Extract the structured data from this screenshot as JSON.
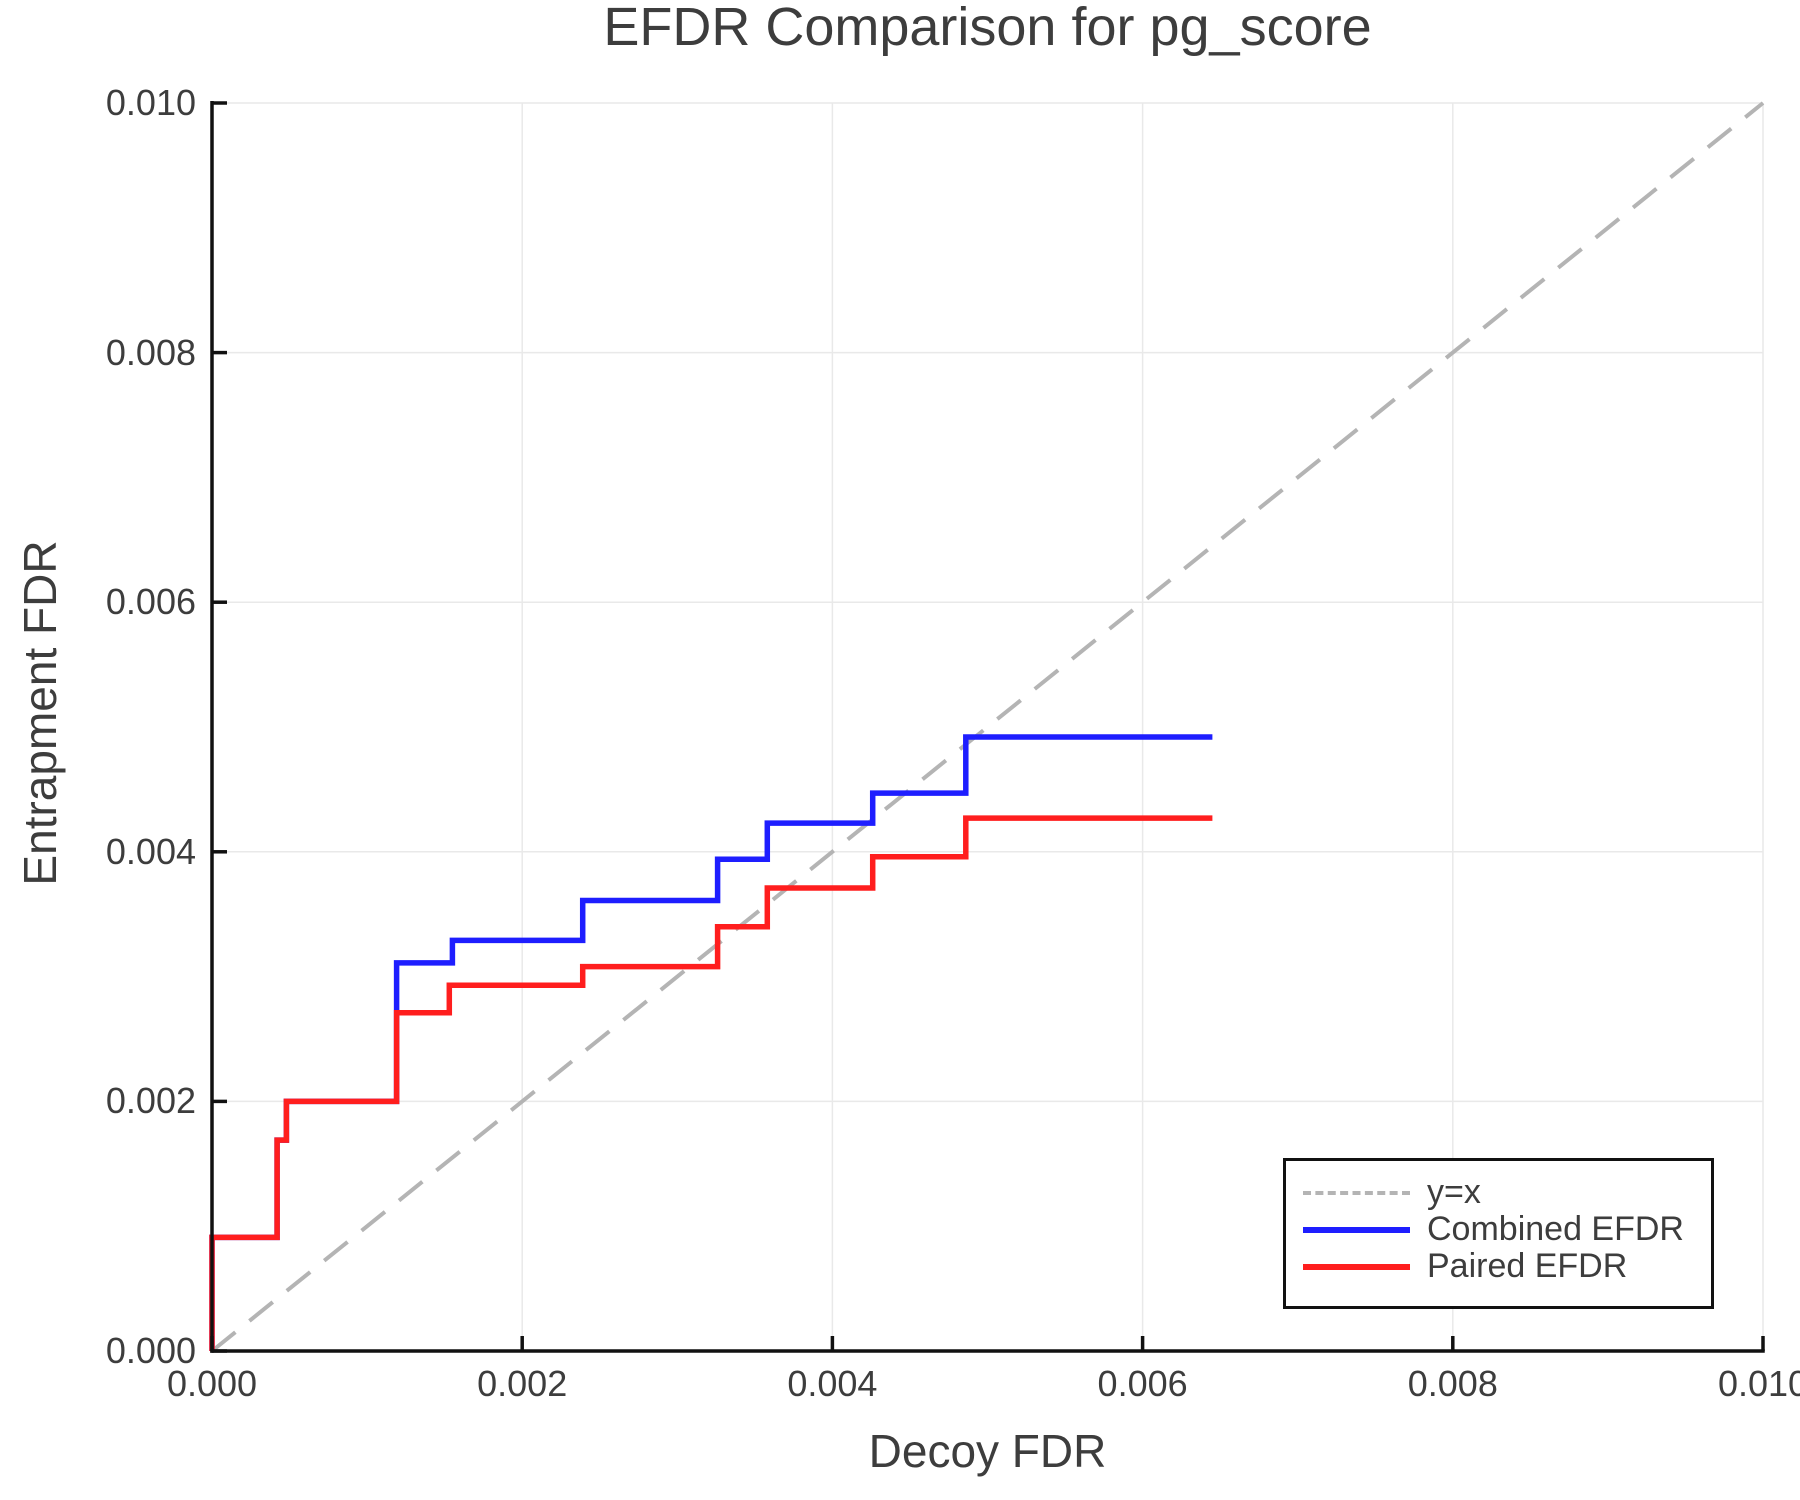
{
  "window": {
    "background": "#ffffff"
  },
  "colors": {
    "text": "#3d3d3d",
    "axis": "#111111",
    "grid": "#e9e9e9"
  },
  "chart_data": {
    "type": "line",
    "title": "EFDR Comparison for pg_score",
    "xlabel": "Decoy FDR",
    "ylabel": "Entrapment FDR",
    "xlim": [
      0,
      0.01
    ],
    "ylim": [
      0,
      0.01
    ],
    "grid": true,
    "legend_position": "bottom-right",
    "xticks": [
      {
        "value": 0.0,
        "label": "0.000"
      },
      {
        "value": 0.002,
        "label": "0.002"
      },
      {
        "value": 0.004,
        "label": "0.004"
      },
      {
        "value": 0.006,
        "label": "0.006"
      },
      {
        "value": 0.008,
        "label": "0.008"
      },
      {
        "value": 0.01,
        "label": "0.010"
      }
    ],
    "yticks": [
      {
        "value": 0.0,
        "label": "0.000"
      },
      {
        "value": 0.002,
        "label": "0.002"
      },
      {
        "value": 0.004,
        "label": "0.004"
      },
      {
        "value": 0.006,
        "label": "0.006"
      },
      {
        "value": 0.008,
        "label": "0.008"
      },
      {
        "value": 0.01,
        "label": "0.010"
      }
    ],
    "reference_line": {
      "label": "y=x",
      "color": "#b4b4b4",
      "dash": true,
      "from": [
        0,
        0
      ],
      "to": [
        0.01,
        0.01
      ]
    },
    "series": [
      {
        "name": "Combined EFDR",
        "color": "#1e1eff",
        "step": true,
        "points": [
          [
            0.0,
            0.0
          ],
          [
            0.0,
            0.00091
          ],
          [
            0.00042,
            0.00091
          ],
          [
            0.00042,
            0.00169
          ],
          [
            0.00048,
            0.00169
          ],
          [
            0.00048,
            0.002
          ],
          [
            0.00119,
            0.002
          ],
          [
            0.00119,
            0.00311
          ],
          [
            0.00155,
            0.00311
          ],
          [
            0.00155,
            0.00329
          ],
          [
            0.00239,
            0.00329
          ],
          [
            0.00239,
            0.00361
          ],
          [
            0.00326,
            0.00361
          ],
          [
            0.00326,
            0.00394
          ],
          [
            0.00358,
            0.00394
          ],
          [
            0.00358,
            0.00423
          ],
          [
            0.00426,
            0.00423
          ],
          [
            0.00426,
            0.00447
          ],
          [
            0.00486,
            0.00447
          ],
          [
            0.00486,
            0.00492
          ],
          [
            0.00645,
            0.00492
          ]
        ]
      },
      {
        "name": "Paired EFDR",
        "color": "#ff1e1e",
        "step": true,
        "points": [
          [
            0.0,
            0.0
          ],
          [
            0.0,
            0.00091
          ],
          [
            0.00042,
            0.00091
          ],
          [
            0.00042,
            0.00169
          ],
          [
            0.00048,
            0.00169
          ],
          [
            0.00048,
            0.002
          ],
          [
            0.00119,
            0.002
          ],
          [
            0.00119,
            0.00271
          ],
          [
            0.00153,
            0.00271
          ],
          [
            0.00153,
            0.00293
          ],
          [
            0.00239,
            0.00293
          ],
          [
            0.00239,
            0.00308
          ],
          [
            0.00326,
            0.00308
          ],
          [
            0.00326,
            0.0034
          ],
          [
            0.00358,
            0.0034
          ],
          [
            0.00358,
            0.00371
          ],
          [
            0.00426,
            0.00371
          ],
          [
            0.00426,
            0.00396
          ],
          [
            0.00486,
            0.00396
          ],
          [
            0.00486,
            0.00427
          ],
          [
            0.00645,
            0.00427
          ]
        ]
      }
    ],
    "legend": {
      "entries": [
        {
          "label": "y=x",
          "color": "#b4b4b4",
          "dash": true
        },
        {
          "label": "Combined EFDR",
          "color": "#1e1eff",
          "dash": false
        },
        {
          "label": "Paired EFDR",
          "color": "#ff1e1e",
          "dash": false
        }
      ]
    }
  }
}
